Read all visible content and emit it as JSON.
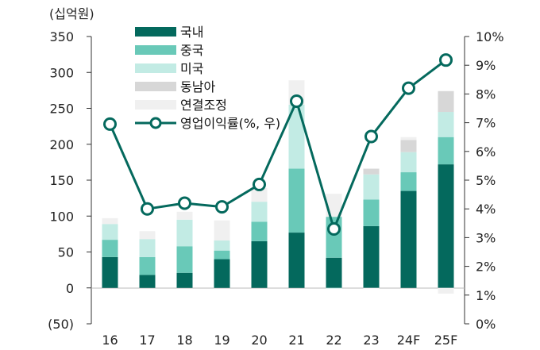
{
  "chart_data": {
    "type": "bar",
    "stacked": true,
    "unit_label": "(십억원)",
    "categories": [
      "16",
      "17",
      "18",
      "19",
      "20",
      "21",
      "22",
      "23",
      "24F",
      "25F"
    ],
    "series": [
      {
        "name": "국내",
        "color": "#04695d",
        "values": [
          43,
          18,
          21,
          40,
          65,
          77,
          42,
          86,
          135,
          172
        ]
      },
      {
        "name": "중국",
        "color": "#69c9b8",
        "values": [
          24,
          25,
          37,
          12,
          27,
          89,
          57,
          37,
          26,
          38
        ]
      },
      {
        "name": "미국",
        "color": "#c2ebe4",
        "values": [
          22,
          25,
          37,
          14,
          28,
          89,
          -1,
          35,
          28,
          35
        ]
      },
      {
        "name": "동남아",
        "color": "#d7d7d7",
        "values": [
          0,
          0,
          0,
          0,
          0,
          0,
          0,
          8,
          17,
          29
        ]
      },
      {
        "name": "연결조정",
        "color": "#f0f0f0",
        "values": [
          8,
          11,
          11,
          28,
          19,
          34,
          32,
          -1,
          4,
          -8
        ]
      }
    ],
    "line": {
      "name": "영업이익률(%, 우)",
      "color": "#04695d",
      "values": [
        6.95,
        4.0,
        4.2,
        4.07,
        4.85,
        7.75,
        3.3,
        6.52,
        8.2,
        9.18
      ]
    },
    "y_left": {
      "min": -50,
      "max": 350,
      "ticks": [
        350,
        300,
        250,
        200,
        150,
        100,
        50,
        0,
        -50
      ],
      "tick_labels": [
        "350",
        "300",
        "250",
        "200",
        "150",
        "100",
        "50",
        "0",
        "(50)"
      ]
    },
    "y_right": {
      "min": 0,
      "max": 10,
      "ticks": [
        10,
        9,
        8,
        7,
        6,
        5,
        4,
        3,
        2,
        1,
        0
      ],
      "tick_labels": [
        "10%",
        "9%",
        "8%",
        "7%",
        "6%",
        "5%",
        "4%",
        "3%",
        "2%",
        "1%",
        "0%"
      ]
    },
    "grid": false,
    "legend_position": "top-center"
  }
}
